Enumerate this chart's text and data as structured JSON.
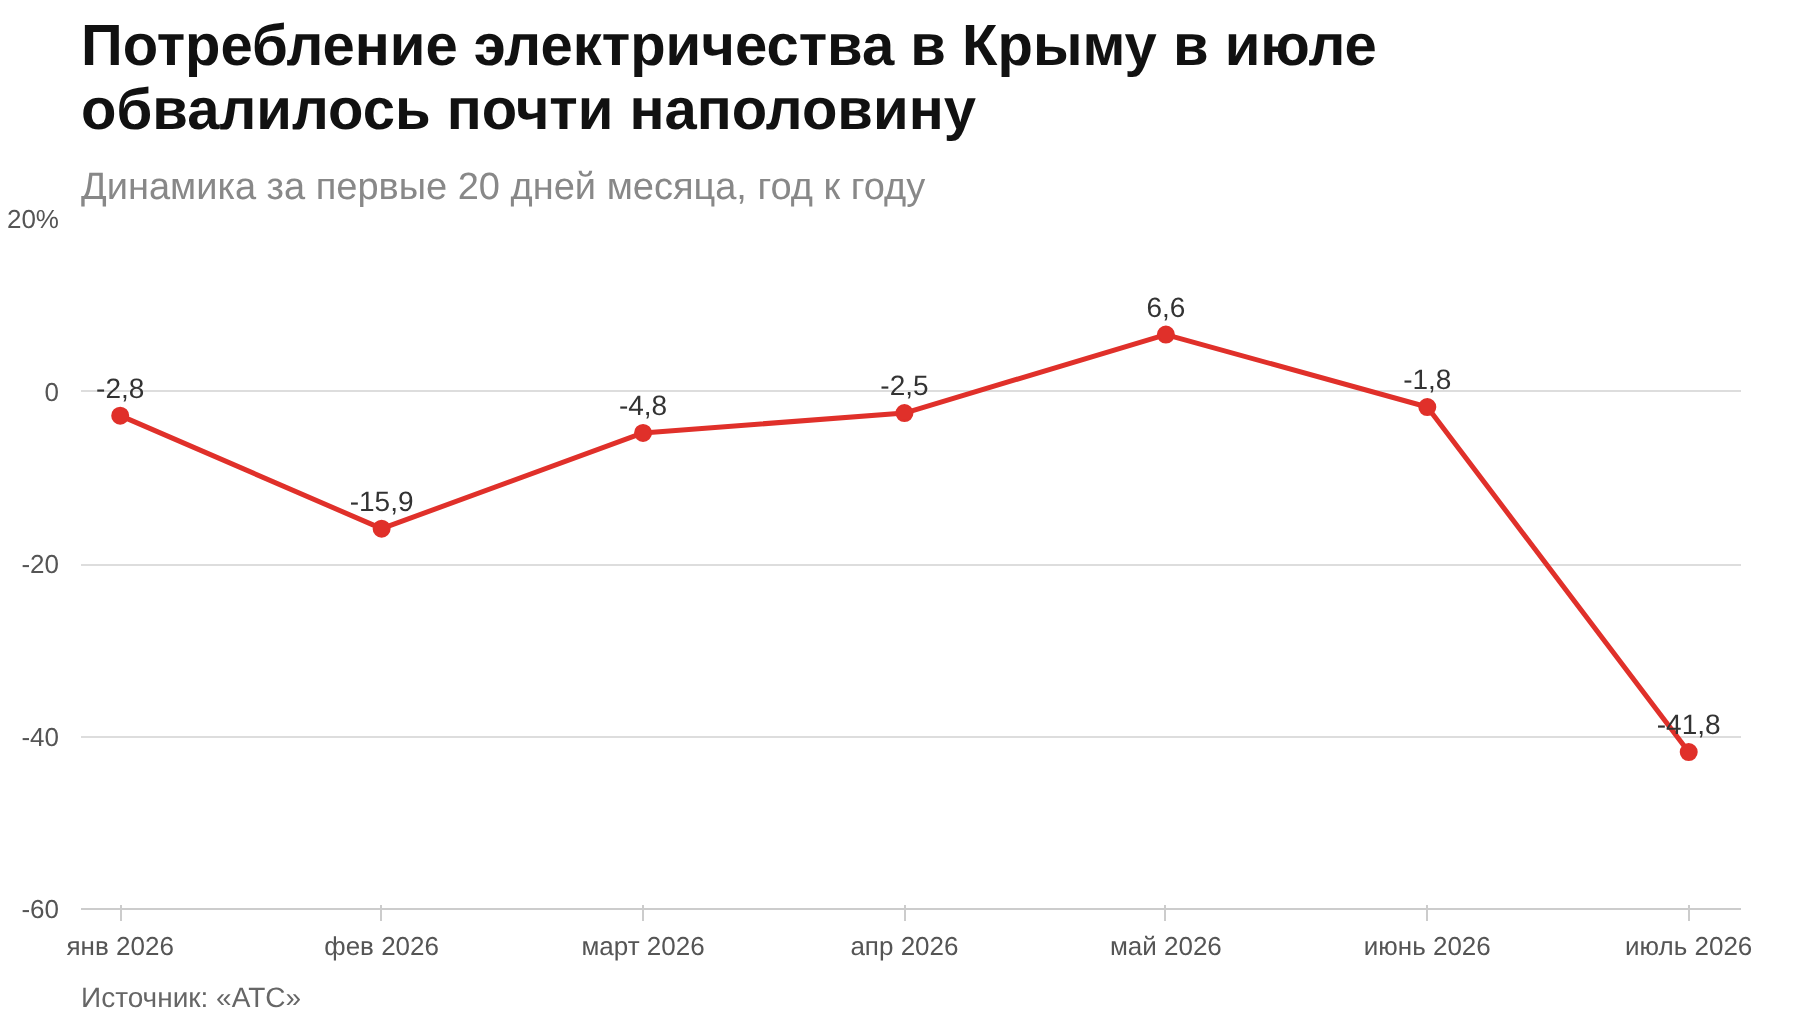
{
  "chart_data": {
    "type": "line",
    "title": "Потребление электричества в Крыму в июле\nобвалилось почти наполовину",
    "subtitle": "Динамика за первые 20 дней месяца, год к году",
    "categories": [
      "янв 2026",
      "фев 2026",
      "март 2026",
      "апр 2026",
      "май 2026",
      "июнь 2026",
      "июль 2026"
    ],
    "series": [
      {
        "color": "#e0302a",
        "values": [
          -2.8,
          -15.9,
          -4.8,
          -2.5,
          6.6,
          -1.8,
          -41.8
        ]
      }
    ],
    "value_labels": [
      "-2,8",
      "-15,9",
      "-4,8",
      "-2,5",
      "6,6",
      "-1,8",
      "-41,8"
    ],
    "ylim": [
      -60,
      20
    ],
    "yticks": [
      {
        "value": 20,
        "label": "20%"
      },
      0,
      -20,
      -40,
      -60
    ],
    "grid": "y",
    "marker": "circle",
    "annotations": [
      "Источник: «АТС»"
    ]
  }
}
